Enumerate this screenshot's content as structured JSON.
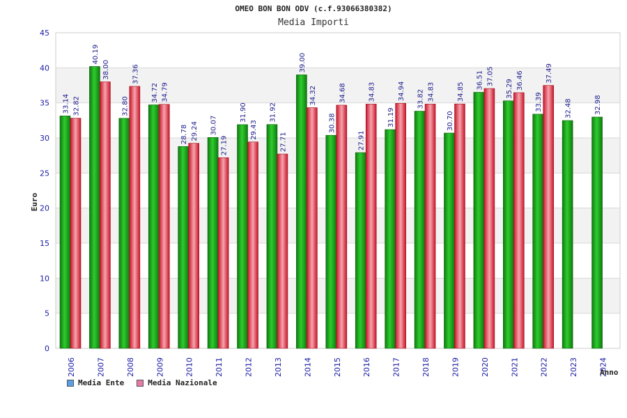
{
  "chart_data": {
    "type": "bar",
    "title": "OMEO BON BON ODV (c.f.93066380382)",
    "subtitle": "Media Importi",
    "xlabel": "Anno",
    "ylabel": "Euro",
    "ylim": [
      0,
      45
    ],
    "yticks": [
      0,
      5,
      10,
      15,
      20,
      25,
      30,
      35,
      40,
      45
    ],
    "grid": true,
    "categories": [
      "2006",
      "2007",
      "2008",
      "2009",
      "2010",
      "2011",
      "2012",
      "2013",
      "2014",
      "2015",
      "2016",
      "2017",
      "2018",
      "2019",
      "2020",
      "2021",
      "2022",
      "2023",
      "2024"
    ],
    "series": [
      {
        "name": "Media Ente",
        "color": "#1fa81f",
        "legend_color": "#5aa0e6",
        "values": [
          33.14,
          40.19,
          32.8,
          34.72,
          28.78,
          30.07,
          31.9,
          31.92,
          39.0,
          30.38,
          27.91,
          31.19,
          33.82,
          30.7,
          36.51,
          35.29,
          33.39,
          32.48,
          32.98
        ],
        "labels": [
          "33.14",
          "40.19",
          "32.80",
          "34.72",
          "28.78",
          "30.07",
          "31.90",
          "31.92",
          "39.00",
          "30.38",
          "27.91",
          "31.19",
          "33.82",
          "30.70",
          "36.51",
          "35.29",
          "33.39",
          "32.48",
          "32.98"
        ]
      },
      {
        "name": "Media Nazionale",
        "color": "#e8263a",
        "legend_color": "#e87aa8",
        "values": [
          32.82,
          38.0,
          37.36,
          34.79,
          29.24,
          27.19,
          29.43,
          27.71,
          34.32,
          34.68,
          34.83,
          34.94,
          34.83,
          34.85,
          37.05,
          36.46,
          37.49,
          null,
          null
        ],
        "labels": [
          "32.82",
          "38.00",
          "37.36",
          "34.79",
          "29.24",
          "27.19",
          "29.43",
          "27.71",
          "34.32",
          "34.68",
          "34.83",
          "34.94",
          "34.83",
          "34.85",
          "37.05",
          "36.46",
          "37.49",
          null,
          null
        ]
      }
    ],
    "legend_position": "bottom-left"
  }
}
